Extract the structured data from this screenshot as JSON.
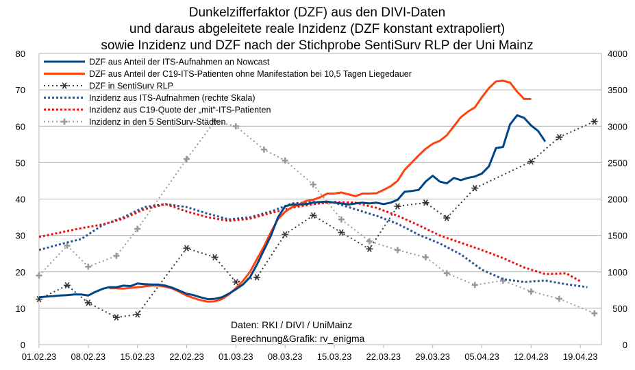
{
  "chart_data": {
    "type": "line",
    "title_lines": [
      "Dunkelzifferfaktor (DZF) aus den DIVI-Daten",
      "und daraus abgeleitete reale Inzidenz (DZF konstant extrapoliert)",
      "sowie Inzidenz und DZF nach der Stichprobe SentiSurv RLP der Uni Mainz"
    ],
    "x_ticks": [
      {
        "day": 0,
        "label": "01.02.23"
      },
      {
        "day": 7,
        "label": "08.02.23"
      },
      {
        "day": 14,
        "label": "15.02.23"
      },
      {
        "day": 21,
        "label": "22.02.23"
      },
      {
        "day": 28,
        "label": "01.03.23"
      },
      {
        "day": 35,
        "label": "08.03.23"
      },
      {
        "day": 42,
        "label": "15.03.23"
      },
      {
        "day": 49,
        "label": "22.03.23"
      },
      {
        "day": 56,
        "label": "29.03.23"
      },
      {
        "day": 63,
        "label": "05.04.23"
      },
      {
        "day": 70,
        "label": "12.04.23"
      },
      {
        "day": 77,
        "label": "19.04.23"
      }
    ],
    "x_range": [
      0,
      80
    ],
    "y_left": {
      "min": 0,
      "max": 80,
      "ticks": [
        "0",
        "10",
        "20",
        "30",
        "40",
        "50",
        "60",
        "70",
        "80"
      ]
    },
    "y_right": {
      "min": 0,
      "max": 4000,
      "ticks": [
        "0",
        "500",
        "1000",
        "1500",
        "2000",
        "2500",
        "3000",
        "3500",
        "4000"
      ]
    },
    "annotations": [
      "Daten: RKI / DIVI / UniMainz",
      "Berechnung&Grafik: rv_enigma"
    ],
    "colors": {
      "navy": "#004586",
      "orange": "#ff420e",
      "black": "#333333",
      "blue": "#2f5597",
      "red": "#ee1111",
      "gray": "#999999"
    },
    "series": [
      {
        "name": "DZF aus Anteil der ITS-Aufnahmen an Nowcast",
        "axis": "left",
        "style": "solid",
        "color": "#004586",
        "marker": "none",
        "x": [
          0,
          1,
          2,
          3,
          4,
          5,
          6,
          7,
          8,
          9,
          10,
          11,
          12,
          13,
          14,
          15,
          16,
          17,
          18,
          19,
          20,
          21,
          22,
          23,
          24,
          25,
          26,
          27,
          28,
          29,
          30,
          31,
          32,
          33,
          34,
          35,
          36,
          37,
          38,
          39,
          40,
          41,
          42,
          43,
          44,
          45,
          46,
          47,
          48,
          49,
          50,
          51,
          52,
          53,
          54,
          55,
          56,
          57,
          58,
          59,
          60,
          61,
          62,
          63,
          64,
          65,
          66,
          67,
          68,
          69,
          70,
          71,
          72
        ],
        "values": [
          13,
          13.2,
          13.3,
          13.5,
          13.6,
          13.8,
          13.8,
          13.5,
          14.5,
          15.3,
          15.8,
          15.8,
          16.2,
          16.1,
          16.8,
          16.6,
          16.5,
          16.5,
          16.2,
          15.6,
          14.8,
          14.0,
          13.6,
          13.0,
          12.5,
          12.6,
          13.0,
          14.0,
          15.2,
          16.5,
          18.5,
          22.0,
          26.0,
          30.0,
          35.0,
          38.0,
          38.5,
          38.5,
          38.6,
          39.0,
          39.2,
          39.3,
          39.0,
          38.8,
          38.5,
          38.8,
          39.0,
          38.8,
          39.0,
          38.6,
          39.0,
          39.8,
          42.0,
          42.2,
          42.5,
          44.8,
          46.4,
          44.8,
          44.3,
          45.8,
          45.2,
          45.8,
          46.2,
          47.0,
          49.0,
          54.0,
          54.3,
          60.5,
          63.0,
          62.3,
          60.2,
          58.7,
          55.8
        ]
      },
      {
        "name": "DZF aus Anteil der C19-ITS-Patienten ohne Manifestation bei 10,5 Tagen Liegedauer",
        "axis": "left",
        "style": "solid",
        "color": "#ff420e",
        "marker": "none",
        "x": [
          10,
          11,
          12,
          13,
          14,
          15,
          16,
          17,
          18,
          19,
          20,
          21,
          22,
          23,
          24,
          25,
          26,
          27,
          28,
          29,
          30,
          31,
          32,
          33,
          34,
          35,
          36,
          37,
          38,
          39,
          40,
          41,
          42,
          43,
          44,
          45,
          46,
          47,
          48,
          49,
          50,
          51,
          52,
          53,
          54,
          55,
          56,
          57,
          58,
          59,
          60,
          61,
          62,
          63,
          64,
          65,
          66,
          67,
          68,
          69,
          70
        ],
        "values": [
          15.5,
          15.5,
          15.4,
          15.6,
          15.8,
          16,
          16.2,
          16.2,
          15.9,
          15.4,
          14.5,
          13.5,
          12.8,
          12.2,
          11.8,
          11.9,
          12.5,
          13.8,
          15.5,
          17.5,
          20.0,
          23.5,
          27.0,
          31.0,
          34.5,
          36.5,
          37.8,
          38.5,
          39.5,
          39.8,
          40.5,
          41.5,
          41.5,
          41.8,
          41.3,
          40.8,
          41.5,
          41.5,
          41.6,
          42.5,
          43.5,
          45.0,
          48.0,
          50.0,
          52.0,
          53.8,
          55.2,
          56.0,
          57.5,
          60.0,
          62.5,
          64.0,
          65.2,
          68.0,
          70.5,
          72.3,
          72.5,
          72.0,
          69.5,
          67.5,
          67.5
        ]
      },
      {
        "name": "DZF in SentiSurv RLP",
        "axis": "left",
        "style": "dotted",
        "color": "#333333",
        "marker": "star",
        "x": [
          0,
          4,
          7,
          11,
          14,
          21,
          25,
          28,
          31,
          35,
          39,
          43,
          47,
          51,
          55,
          58,
          62,
          70,
          74,
          79
        ],
        "values": [
          12.5,
          16.3,
          11.5,
          7.5,
          8.3,
          26.5,
          24.0,
          17.2,
          18.5,
          30.3,
          35.5,
          30.8,
          26.3,
          38.0,
          39.0,
          34.8,
          43.0,
          50.3,
          57.0,
          61.3
        ]
      },
      {
        "name": "Inzidenz aus ITS-Aufnahmen (rechte Skala)",
        "axis": "right",
        "style": "dotted",
        "color": "#2f5597",
        "marker": "none",
        "x": [
          0,
          3,
          6,
          9,
          12,
          15,
          18,
          21,
          24,
          27,
          30,
          33,
          36,
          39,
          42,
          45,
          48,
          51,
          54,
          57,
          60,
          63,
          66,
          69,
          72,
          75,
          78
        ],
        "values": [
          1300,
          1380,
          1450,
          1640,
          1750,
          1890,
          1930,
          1890,
          1800,
          1720,
          1750,
          1830,
          1940,
          1960,
          1950,
          1860,
          1770,
          1660,
          1510,
          1390,
          1240,
          1030,
          900,
          860,
          880,
          830,
          790
        ]
      },
      {
        "name": "Inzidenz aus C19-Quote der „mit“-ITS-Patienten",
        "axis": "right",
        "style": "dotted",
        "color": "#ee1111",
        "marker": "none",
        "x": [
          0,
          3,
          6,
          9,
          12,
          15,
          18,
          21,
          24,
          27,
          30,
          33,
          36,
          39,
          42,
          45,
          48,
          51,
          54,
          57,
          60,
          63,
          66,
          69,
          72,
          75,
          77
        ],
        "values": [
          1480,
          1540,
          1600,
          1650,
          1730,
          1860,
          1930,
          1830,
          1750,
          1700,
          1730,
          1810,
          1880,
          1930,
          1960,
          1950,
          1880,
          1770,
          1640,
          1500,
          1400,
          1300,
          1190,
          1060,
          970,
          980,
          870
        ]
      },
      {
        "name": "Inzidenz in den 5 SentiSurv-Städten",
        "axis": "right",
        "style": "dotted",
        "color": "#999999",
        "marker": "plus",
        "x": [
          0,
          4,
          7,
          11,
          14,
          21,
          25,
          28,
          32,
          35,
          39,
          43,
          47,
          51,
          55,
          58,
          62,
          66,
          70,
          74,
          79
        ],
        "values": [
          950,
          1360,
          1070,
          1220,
          1590,
          2550,
          3070,
          3000,
          2680,
          2530,
          2200,
          1720,
          1420,
          1300,
          1200,
          980,
          820,
          880,
          730,
          630,
          430
        ]
      }
    ]
  }
}
